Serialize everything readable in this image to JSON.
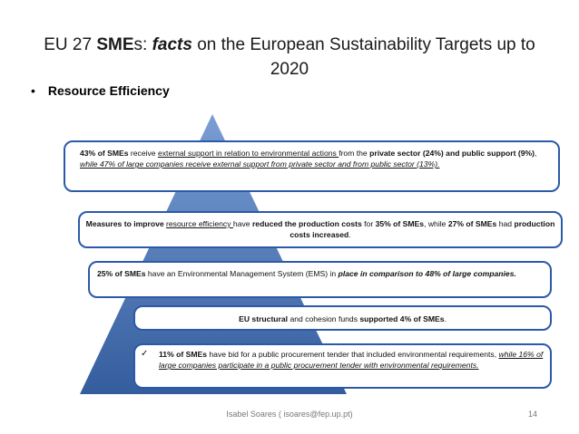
{
  "title": {
    "part1": "EU 27 ",
    "part2": "SME",
    "part3": "s: ",
    "part4": "facts",
    "part5": " on the European Sustainability Targets up to",
    "line2": "2020"
  },
  "bullet": {
    "marker": "•",
    "text": "Resource Efficiency"
  },
  "box1": {
    "a": "43% of SMEs",
    "b": " receive ",
    "c": "external support in relation to environmental actions ",
    "d": "from the ",
    "e": "private sector (24%) and public support (9%)",
    "f": ", ",
    "g": "while 47% of large companies receive external support from private sector and from public sector (13%).",
    "h": ""
  },
  "box2": {
    "a": "Measures to improve ",
    "b": "resource efficiency ",
    "c": "have ",
    "d": "reduced the production costs",
    "e": " for ",
    "f": "35% of SMEs",
    "g": ", while ",
    "h": "27% of SMEs",
    "i": " had ",
    "j": "production costs increased",
    "k": "."
  },
  "box3": {
    "a": "25% of SMEs",
    "b": " have an Environmental Management System (EMS) in ",
    "c": "place in comparison to 48% of large companies."
  },
  "box4": {
    "a": "EU structural",
    "b": " and cohesion funds ",
    "c": "supported 4% of SMEs",
    "d": "."
  },
  "box5": {
    "check": "✓",
    "a": "11% of SMEs",
    "b": " have bid for a public procurement tender that included environmental requirements, ",
    "c": "while 16% of large companies participate in a public procurement tender with environmental requirements."
  },
  "footer": {
    "author": "Isabel Soares  ( isoares@fep.up.pt)",
    "page": "14"
  },
  "colors": {
    "pyramid_top": "#6d93c9",
    "pyramid_bottom": "#3a63a3",
    "box_border": "#2b5aa8"
  }
}
